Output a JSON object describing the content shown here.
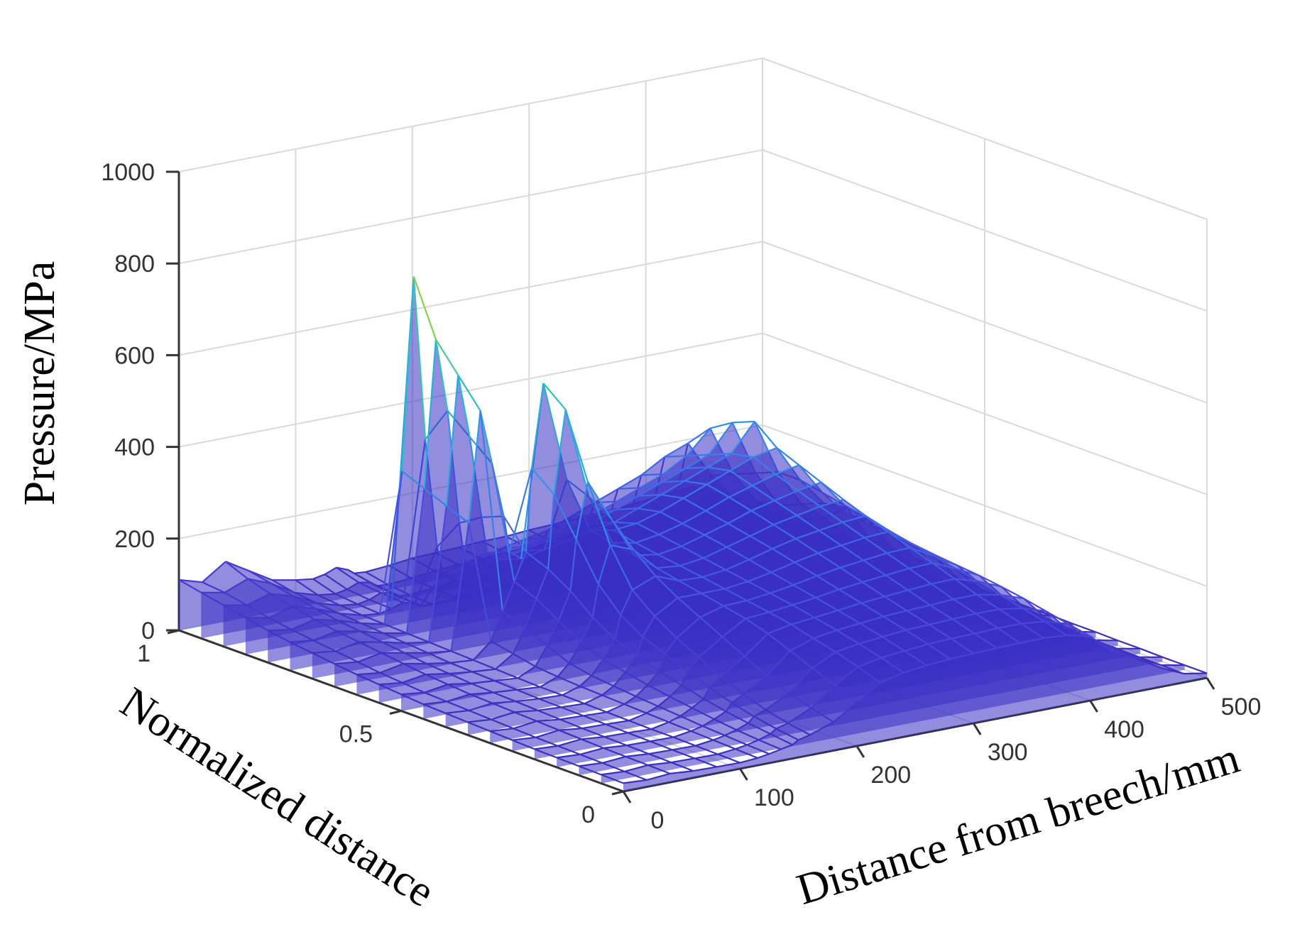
{
  "chart_data": {
    "type": "surface3d",
    "title": "",
    "xlabel": "Distance from breech/mm",
    "ylabel": "Normalized distance",
    "zlabel": "Pressure/MPa",
    "xlim": [
      0,
      500
    ],
    "ylim": [
      0,
      1
    ],
    "zlim": [
      0,
      1000
    ],
    "x_ticks": [
      0,
      100,
      200,
      300,
      400,
      500
    ],
    "y_ticks": [
      0,
      0.5,
      1
    ],
    "z_ticks": [
      0,
      200,
      400,
      600,
      800,
      1000
    ],
    "x_tick_labels": [
      "0",
      "100",
      "200",
      "300",
      "400",
      "500"
    ],
    "y_tick_labels": [
      "0",
      "0.5",
      "1"
    ],
    "z_tick_labels": [
      "0",
      "200",
      "400",
      "600",
      "800",
      "1000"
    ],
    "grid": true,
    "colormap": [
      "#3b2db8",
      "#4a3fd6",
      "#3f6ee8",
      "#2f9ee6",
      "#23c0c9",
      "#7fd24a",
      "#c8dc2a"
    ],
    "profile_x": [
      0,
      20,
      40,
      60,
      80,
      100,
      115,
      125,
      135,
      145,
      150,
      160,
      180,
      200,
      220,
      240,
      260,
      280,
      300,
      320,
      340,
      360,
      380,
      400,
      420,
      440,
      460,
      480,
      500
    ],
    "profiles": [
      {
        "y": 1.0,
        "pressure": [
          110,
          95,
          130,
          100,
          70,
          60,
          55,
          60,
          70,
          60,
          50,
          48,
          52,
          58,
          60,
          62,
          65,
          66,
          70,
          72,
          75,
          78,
          80,
          85,
          90,
          95,
          70,
          40,
          30
        ]
      },
      {
        "y": 0.95,
        "pressure": [
          100,
          90,
          110,
          90,
          60,
          45,
          40,
          45,
          55,
          50,
          40,
          38,
          42,
          48,
          52,
          55,
          58,
          60,
          62,
          66,
          70,
          72,
          75,
          80,
          85,
          90,
          60,
          35,
          25
        ]
      },
      {
        "y": 0.9,
        "pressure": [
          90,
          80,
          95,
          80,
          55,
          40,
          35,
          40,
          50,
          45,
          35,
          33,
          38,
          44,
          48,
          50,
          55,
          56,
          58,
          62,
          66,
          68,
          70,
          75,
          80,
          85,
          55,
          30,
          20
        ]
      },
      {
        "y": 0.85,
        "pressure": [
          80,
          70,
          85,
          70,
          50,
          36,
          32,
          38,
          46,
          40,
          32,
          30,
          34,
          40,
          44,
          46,
          50,
          52,
          54,
          58,
          62,
          64,
          66,
          70,
          75,
          80,
          50,
          28,
          18
        ]
      },
      {
        "y": 0.8,
        "pressure": [
          70,
          62,
          74,
          62,
          46,
          34,
          360,
          780,
          420,
          180,
          120,
          110,
          130,
          150,
          160,
          170,
          190,
          210,
          230,
          250,
          280,
          300,
          220,
          160,
          120,
          90,
          60,
          30,
          20
        ]
      },
      {
        "y": 0.75,
        "pressure": [
          62,
          56,
          66,
          56,
          42,
          32,
          340,
          660,
          500,
          250,
          160,
          140,
          150,
          170,
          180,
          190,
          210,
          230,
          250,
          270,
          300,
          350,
          240,
          170,
          130,
          95,
          60,
          30,
          18
        ]
      },
      {
        "y": 0.7,
        "pressure": [
          56,
          50,
          60,
          50,
          38,
          30,
          320,
          600,
          460,
          280,
          200,
          180,
          190,
          200,
          210,
          220,
          240,
          260,
          280,
          300,
          320,
          380,
          260,
          180,
          140,
          100,
          62,
          30,
          16
        ]
      },
      {
        "y": 0.65,
        "pressure": [
          50,
          44,
          54,
          44,
          34,
          28,
          300,
          540,
          420,
          300,
          220,
          200,
          210,
          220,
          230,
          240,
          260,
          280,
          300,
          320,
          340,
          400,
          280,
          200,
          160,
          110,
          64,
          30,
          16
        ]
      },
      {
        "y": 0.6,
        "pressure": [
          44,
          38,
          48,
          38,
          30,
          26,
          60,
          120,
          180,
          240,
          420,
          600,
          380,
          260,
          250,
          255,
          270,
          290,
          310,
          330,
          350,
          360,
          280,
          220,
          200,
          120,
          66,
          30,
          15
        ]
      },
      {
        "y": 0.55,
        "pressure": [
          40,
          34,
          42,
          34,
          28,
          24,
          50,
          100,
          160,
          220,
          380,
          560,
          360,
          250,
          240,
          248,
          262,
          280,
          300,
          315,
          330,
          340,
          270,
          215,
          190,
          118,
          64,
          30,
          15
        ]
      },
      {
        "y": 0.5,
        "pressure": [
          36,
          30,
          38,
          30,
          26,
          22,
          40,
          80,
          130,
          190,
          300,
          420,
          330,
          240,
          232,
          240,
          255,
          270,
          288,
          300,
          312,
          320,
          260,
          210,
          180,
          115,
          62,
          28,
          14
        ]
      },
      {
        "y": 0.45,
        "pressure": [
          32,
          28,
          34,
          28,
          24,
          20,
          35,
          60,
          100,
          150,
          220,
          300,
          280,
          230,
          225,
          232,
          246,
          260,
          275,
          285,
          295,
          300,
          250,
          205,
          170,
          110,
          60,
          27,
          14
        ]
      },
      {
        "y": 0.4,
        "pressure": [
          30,
          26,
          32,
          26,
          22,
          20,
          32,
          50,
          80,
          120,
          170,
          220,
          240,
          220,
          218,
          224,
          236,
          250,
          262,
          270,
          278,
          282,
          240,
          200,
          160,
          105,
          58,
          26,
          13
        ]
      },
      {
        "y": 0.35,
        "pressure": [
          28,
          24,
          30,
          24,
          21,
          19,
          30,
          45,
          70,
          100,
          140,
          180,
          210,
          210,
          210,
          216,
          226,
          238,
          248,
          255,
          262,
          265,
          230,
          195,
          150,
          100,
          56,
          25,
          13
        ]
      },
      {
        "y": 0.3,
        "pressure": [
          26,
          22,
          28,
          22,
          20,
          18,
          28,
          40,
          60,
          85,
          120,
          150,
          185,
          200,
          202,
          208,
          216,
          226,
          234,
          240,
          246,
          248,
          220,
          190,
          140,
          96,
          54,
          24,
          12
        ]
      },
      {
        "y": 0.25,
        "pressure": [
          24,
          20,
          26,
          20,
          19,
          17,
          26,
          36,
          52,
          72,
          100,
          125,
          160,
          190,
          194,
          200,
          206,
          214,
          220,
          225,
          230,
          232,
          210,
          185,
          130,
          92,
          52,
          23,
          12
        ]
      },
      {
        "y": 0.2,
        "pressure": [
          22,
          19,
          24,
          19,
          18,
          16,
          24,
          32,
          45,
          60,
          82,
          100,
          135,
          175,
          185,
          190,
          196,
          202,
          206,
          210,
          214,
          215,
          200,
          178,
          122,
          88,
          50,
          22,
          11
        ]
      },
      {
        "y": 0.15,
        "pressure": [
          21,
          18,
          22,
          18,
          17,
          16,
          22,
          28,
          38,
          50,
          66,
          80,
          110,
          155,
          172,
          180,
          185,
          190,
          193,
          195,
          198,
          198,
          188,
          170,
          115,
          84,
          48,
          21,
          11
        ]
      },
      {
        "y": 0.1,
        "pressure": [
          20,
          17,
          21,
          17,
          16,
          15,
          20,
          25,
          32,
          42,
          54,
          64,
          90,
          135,
          160,
          168,
          173,
          178,
          180,
          182,
          184,
          184,
          176,
          160,
          108,
          80,
          46,
          20,
          10
        ]
      },
      {
        "y": 0.05,
        "pressure": [
          19,
          16,
          20,
          16,
          15,
          14,
          18,
          22,
          28,
          36,
          45,
          52,
          75,
          115,
          145,
          155,
          160,
          165,
          167,
          168,
          170,
          170,
          165,
          150,
          100,
          76,
          44,
          20,
          10
        ]
      },
      {
        "y": 0.0,
        "pressure": [
          18,
          15,
          19,
          15,
          14,
          13,
          16,
          20,
          25,
          30,
          38,
          44,
          62,
          95,
          128,
          140,
          146,
          150,
          152,
          154,
          155,
          156,
          152,
          140,
          95,
          72,
          42,
          19,
          10
        ]
      }
    ]
  }
}
